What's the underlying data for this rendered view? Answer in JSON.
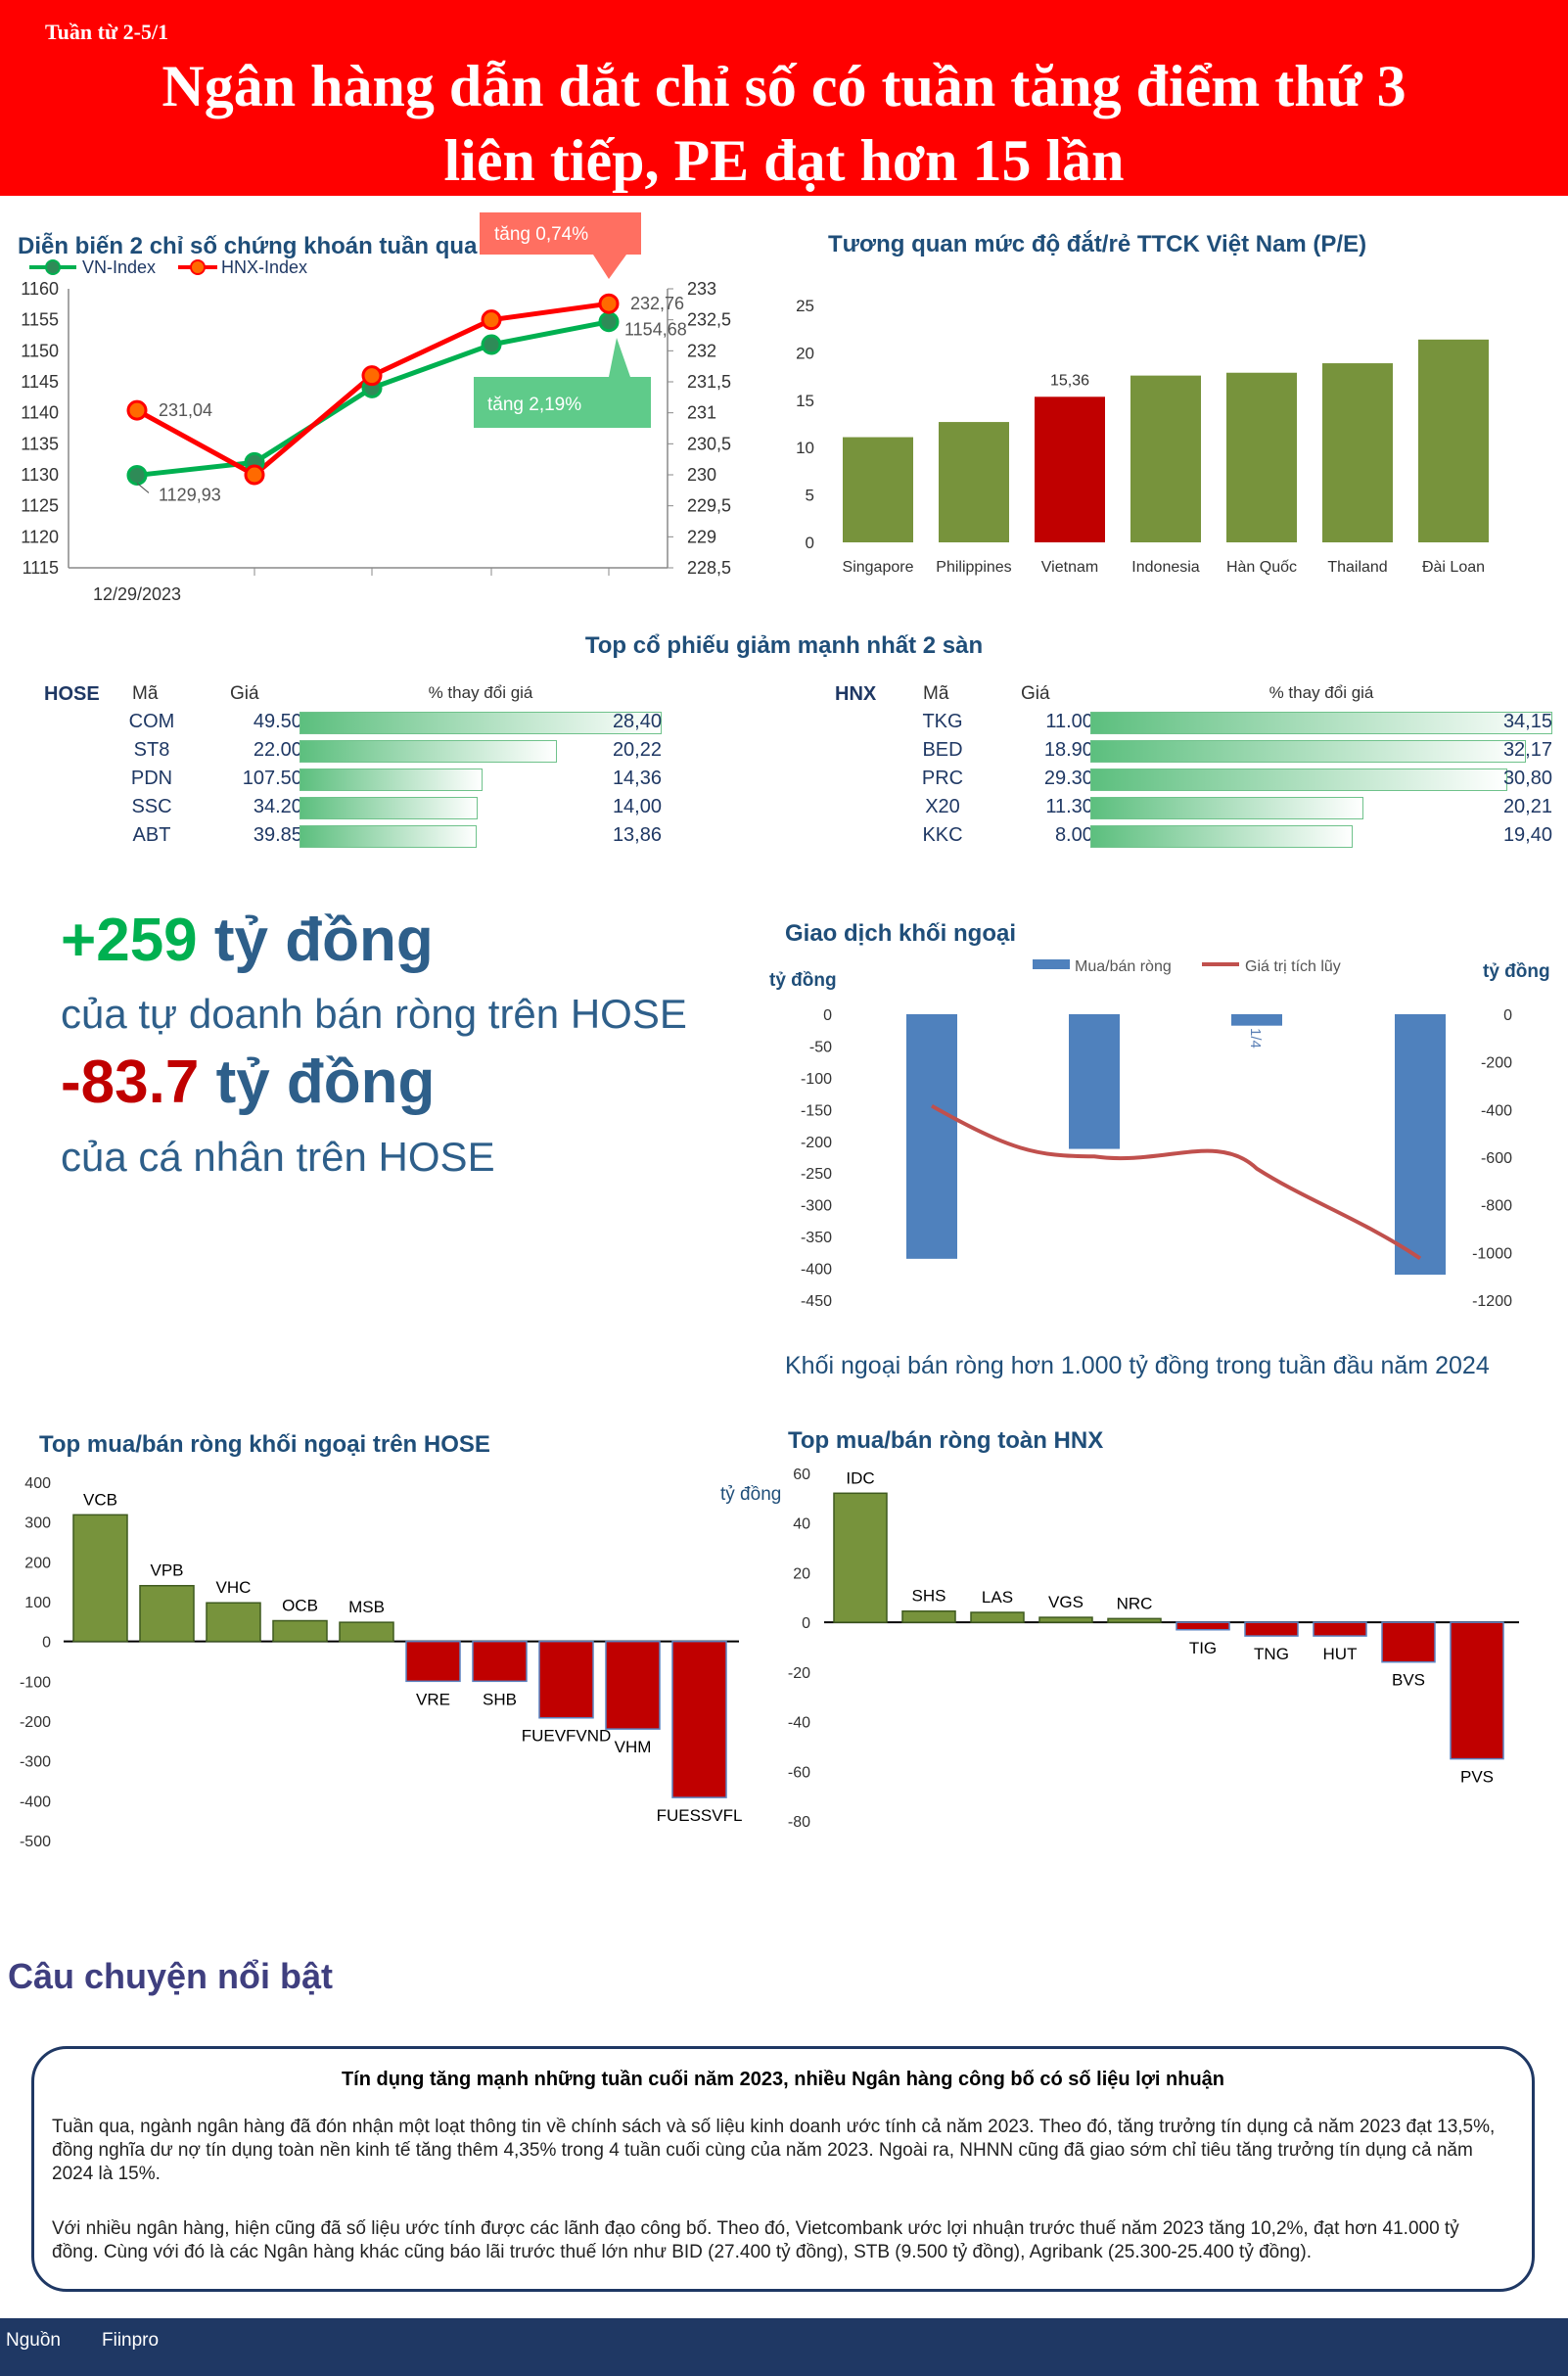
{
  "header": {
    "week": "Tuần từ 2-5/1",
    "title_line1": "Ngân hàng dẫn dắt chỉ số có tuần tăng điểm thứ 3",
    "title_line2": "liên tiếp, PE đạt hơn 15 lần"
  },
  "colors": {
    "green": "#00b050",
    "red": "#ff0000",
    "olive": "#77933c",
    "darkred": "#c00000",
    "blue": "#4f81bd",
    "navy": "#1f3864"
  },
  "index_chart": {
    "title": "Diễn biến 2 chỉ số chứng khoán tuần qua",
    "legend_vn": "VN-Index",
    "legend_hnx": "HNX-Index",
    "x_label": "12/29/2023",
    "vn_values": [
      1129.93,
      1132,
      1144,
      1151,
      1154.68
    ],
    "hnx_values": [
      231.04,
      230,
      231.6,
      232.5,
      232.76
    ],
    "vn_ylim": [
      1115,
      1160
    ],
    "hnx_ylim": [
      228.5,
      233
    ],
    "vn_ticks": [
      "1160",
      "1155",
      "1150",
      "1145",
      "1140",
      "1135",
      "1130",
      "1125",
      "1120",
      "1115"
    ],
    "hnx_ticks": [
      "233",
      "232,5",
      "232",
      "231,5",
      "231",
      "230,5",
      "230",
      "229,5",
      "229",
      "228,5"
    ],
    "label_vn_first": "1129,93",
    "label_hnx_first": "231,04",
    "label_hnx_last": "232,76",
    "label_vn_last": "1154,68",
    "callout_hnx": "tăng 0,74%",
    "callout_vn": "tăng 2,19%"
  },
  "pe_chart": {
    "title": "Tương quan mức độ đắt/rẻ TTCK Việt Nam (P/E)",
    "categories": [
      "Singapore",
      "Philippines",
      "Vietnam",
      "Indonesia",
      "Hàn Quốc",
      "Thailand",
      "Đài Loan"
    ],
    "values": [
      11.1,
      12.7,
      15.36,
      17.6,
      17.9,
      18.9,
      21.4
    ],
    "highlight_label": "15,36",
    "y_ticks": [
      "25",
      "20",
      "15",
      "10",
      "5",
      "0"
    ],
    "ylim": [
      0,
      25
    ]
  },
  "decliners": {
    "title": "Top cổ phiếu giảm mạnh nhất 2 sàn",
    "col_code": "Mã",
    "col_price": "Giá",
    "col_change": "% thay đổi giá",
    "hose": {
      "label": "HOSE",
      "rows": [
        {
          "code": "COM",
          "price": "49.500",
          "change": "28,40",
          "value": 28.4
        },
        {
          "code": "ST8",
          "price": "22.000",
          "change": "20,22",
          "value": 20.22
        },
        {
          "code": "PDN",
          "price": "107.500",
          "change": "14,36",
          "value": 14.36
        },
        {
          "code": "SSC",
          "price": "34.200",
          "change": "14,00",
          "value": 14.0
        },
        {
          "code": "ABT",
          "price": "39.850",
          "change": "13,86",
          "value": 13.86
        }
      ]
    },
    "hnx": {
      "label": "HNX",
      "rows": [
        {
          "code": "TKG",
          "price": "11.000",
          "change": "34,15",
          "value": 34.15
        },
        {
          "code": "BED",
          "price": "18.900",
          "change": "32,17",
          "value": 32.17
        },
        {
          "code": "PRC",
          "price": "29.300",
          "change": "30,80",
          "value": 30.8
        },
        {
          "code": "X20",
          "price": "11.300",
          "change": "20,21",
          "value": 20.21
        },
        {
          "code": "KKC",
          "price": "8.000",
          "change": "19,40",
          "value": 19.4
        }
      ]
    }
  },
  "big_numbers": {
    "prop_value": "+259",
    "prop_unit": "tỷ đồng",
    "prop_desc": "của tự doanh bán ròng trên HOSE",
    "indiv_value": "-83.7",
    "indiv_unit": "tỷ đồng",
    "indiv_desc": "của cá nhân trên HOSE"
  },
  "foreign_chart": {
    "title": "Giao dịch khối ngoại",
    "left_unit": "tỷ đồng",
    "right_unit": "tỷ đồng",
    "legend_bar": "Mua/bán ròng",
    "legend_line": "Giá trị tích lũy",
    "bar_values": [
      -385,
      -212,
      -18,
      -410
    ],
    "cum_values": [
      -385,
      -597,
      -615,
      -1025
    ],
    "bar_label_3": "1/4",
    "left_ticks": [
      "0",
      "-50",
      "-100",
      "-150",
      "-200",
      "-250",
      "-300",
      "-350",
      "-400",
      "-450"
    ],
    "right_ticks": [
      "0",
      "-200",
      "-400",
      "-600",
      "-800",
      "-1000",
      "-1200"
    ],
    "left_ylim": [
      -450,
      0
    ],
    "right_ylim": [
      -1200,
      0
    ],
    "caption": "Khối ngoại bán ròng hơn 1.000 tỷ đồng trong tuần đầu năm 2024"
  },
  "hose_foreign": {
    "title": "Top mua/bán ròng khối ngoại trên HOSE",
    "categories": [
      "VCB",
      "VPB",
      "VHC",
      "OCB",
      "MSB",
      "VRE",
      "SHB",
      "FUEVFVND",
      "VHM",
      "FUESSVFL"
    ],
    "values": [
      318,
      140,
      97,
      52,
      48,
      -100,
      -100,
      -192,
      -220,
      -392
    ],
    "y_ticks": [
      "400",
      "300",
      "200",
      "100",
      "0",
      "-100",
      "-200",
      "-300",
      "-400",
      "-500"
    ],
    "ylim": [
      -500,
      400
    ]
  },
  "hnx_foreign": {
    "title": "Top mua/bán ròng toàn HNX",
    "unit": "tỷ đồng",
    "categories": [
      "IDC",
      "SHS",
      "LAS",
      "VGS",
      "NRC",
      "TIG",
      "TNG",
      "HUT",
      "BVS",
      "PVS"
    ],
    "values": [
      52,
      4.5,
      4,
      2,
      1.5,
      -3,
      -5.5,
      -5.5,
      -16,
      -55
    ],
    "y_ticks": [
      "60",
      "40",
      "20",
      "0",
      "-20",
      "-40",
      "-60",
      "-80"
    ],
    "ylim": [
      -80,
      60
    ]
  },
  "story": {
    "section_title": "Câu chuyện nổi bật",
    "headline": "Tín dụng tăng mạnh những tuần cuối năm 2023, nhiều Ngân hàng công bố có số liệu lợi nhuận",
    "para1": "Tuần qua, ngành ngân hàng đã đón nhận một loạt thông tin về chính sách và số liệu kinh doanh ước tính cả năm 2023. Theo đó, tăng trưởng tín dụng cả năm 2023 đạt 13,5%, đồng nghĩa dư nợ tín dụng toàn nền kinh tế tăng thêm 4,35% trong 4 tuần cuối cùng của năm 2023. Ngoài ra, NHNN cũng đã giao sớm chỉ tiêu tăng trưởng tín dụng cả năm 2024 là 15%.",
    "para2": "Với nhiều ngân hàng, hiện cũng đã số liệu ước tính được các lãnh đạo công bố. Theo đó, Vietcombank ước lợi nhuận trước thuế năm 2023 tăng 10,2%, đạt hơn 41.000 tỷ đồng. Cùng với đó là các Ngân hàng khác cũng báo lãi trước thuế lớn như BID (27.400 tỷ đồng), STB (9.500 tỷ đồng), Agribank (25.300-25.400 tỷ đồng)."
  },
  "footer": {
    "source_label": "Nguồn",
    "source": "Fiinpro"
  }
}
